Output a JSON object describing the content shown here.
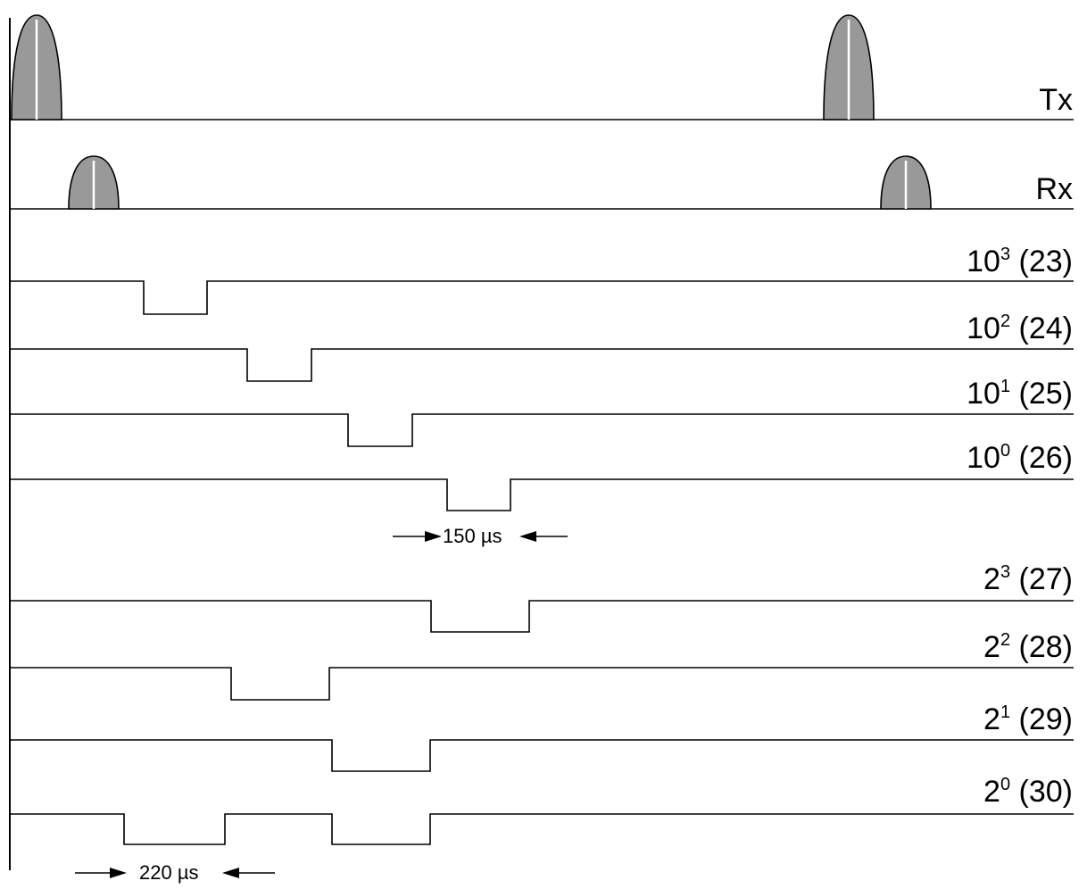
{
  "channels": {
    "tx": "Tx",
    "rx": "Rx",
    "d103": {
      "base": "10",
      "exp": "3",
      "pin": "(23)"
    },
    "d102": {
      "base": "10",
      "exp": "2",
      "pin": "(24)"
    },
    "d101": {
      "base": "10",
      "exp": "1",
      "pin": "(25)"
    },
    "d100": {
      "base": "10",
      "exp": "0",
      "pin": "(26)"
    },
    "b23": {
      "base": "2",
      "exp": "3",
      "pin": "(27)"
    },
    "b22": {
      "base": "2",
      "exp": "2",
      "pin": "(28)"
    },
    "b21": {
      "base": "2",
      "exp": "1",
      "pin": "(29)"
    },
    "b20": {
      "base": "2",
      "exp": "0",
      "pin": "(30)"
    }
  },
  "annotations": {
    "pulse_width_decimal": "150 µs",
    "pulse_width_binary": "220 µs"
  },
  "colors": {
    "pulse_fill": "#999999",
    "line": "#000000"
  }
}
